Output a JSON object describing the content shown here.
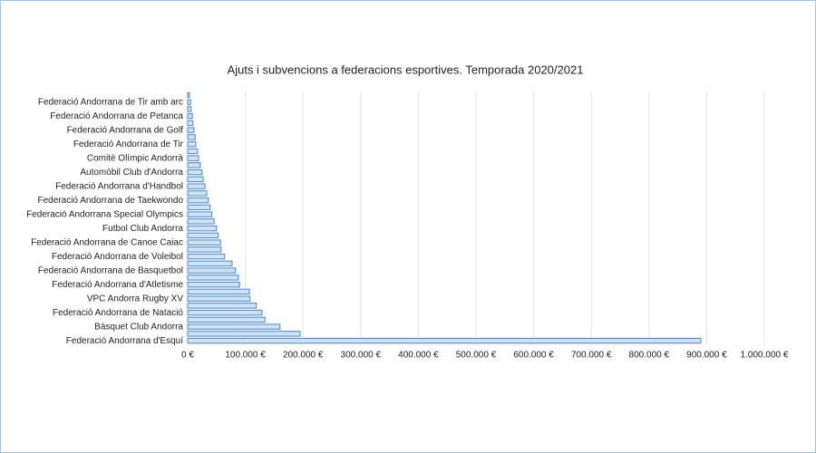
{
  "chart_data": {
    "type": "hbar",
    "title": "Ajuts i subvencions  a federacions esportives. Temporada 2020/2021",
    "categories": [
      null,
      "Federació Andorrana de Tir amb arc",
      null,
      "Federació Andorrana de Petanca",
      null,
      "Federació Andorrana de Golf",
      null,
      "Federació Andorrana de Tir",
      null,
      "Comitè Olímpic Andorrà",
      null,
      "Automòbil Club d'Andorra",
      null,
      "Federació Andorrana d'Handbol",
      null,
      "Federació Andorrana de Taekwondo",
      null,
      "Federació Andorrana Special Olympics",
      null,
      "Futbol Club Andorra",
      null,
      "Federació Andorrana de Canoe Caiac",
      null,
      "Federació Andorrana de Voleibol",
      null,
      "Federació Andorrana de Basquetbol",
      null,
      "Federació Andorrana d'Atletisme",
      null,
      "VPC Andorra Rugby XV",
      null,
      "Federació Andorrana de Natació",
      null,
      "Bàsquet Club Andorra",
      null,
      "Federació Andorrana d'Esquí"
    ],
    "values": [
      3000,
      5000,
      6000,
      8000,
      9000,
      11000,
      13000,
      14000,
      17000,
      19000,
      22000,
      25000,
      27000,
      30000,
      33000,
      36000,
      39000,
      42000,
      46000,
      50000,
      53000,
      57000,
      58000,
      64000,
      77000,
      83000,
      88000,
      90000,
      107000,
      108000,
      119000,
      129000,
      134000,
      160000,
      195000,
      890000
    ],
    "color": "#cfe2f3",
    "edge_color": "#4a86c8",
    "xlim": [
      0,
      1000000
    ],
    "xticks": [
      {
        "value": 0,
        "label": "0 €"
      },
      {
        "value": 100000,
        "label": "100.000 €"
      },
      {
        "value": 200000,
        "label": "200.000 €"
      },
      {
        "value": 300000,
        "label": "300.000 €"
      },
      {
        "value": 400000,
        "label": "400.000 €"
      },
      {
        "value": 500000,
        "label": "500.000 €"
      },
      {
        "value": 600000,
        "label": "600.000 €"
      },
      {
        "value": 700000,
        "label": "700.000 €"
      },
      {
        "value": 800000,
        "label": "800.000 €"
      },
      {
        "value": 900000,
        "label": "900.000 €"
      },
      {
        "value": 1000000,
        "label": "1.000.000 €"
      }
    ],
    "grid": true
  }
}
